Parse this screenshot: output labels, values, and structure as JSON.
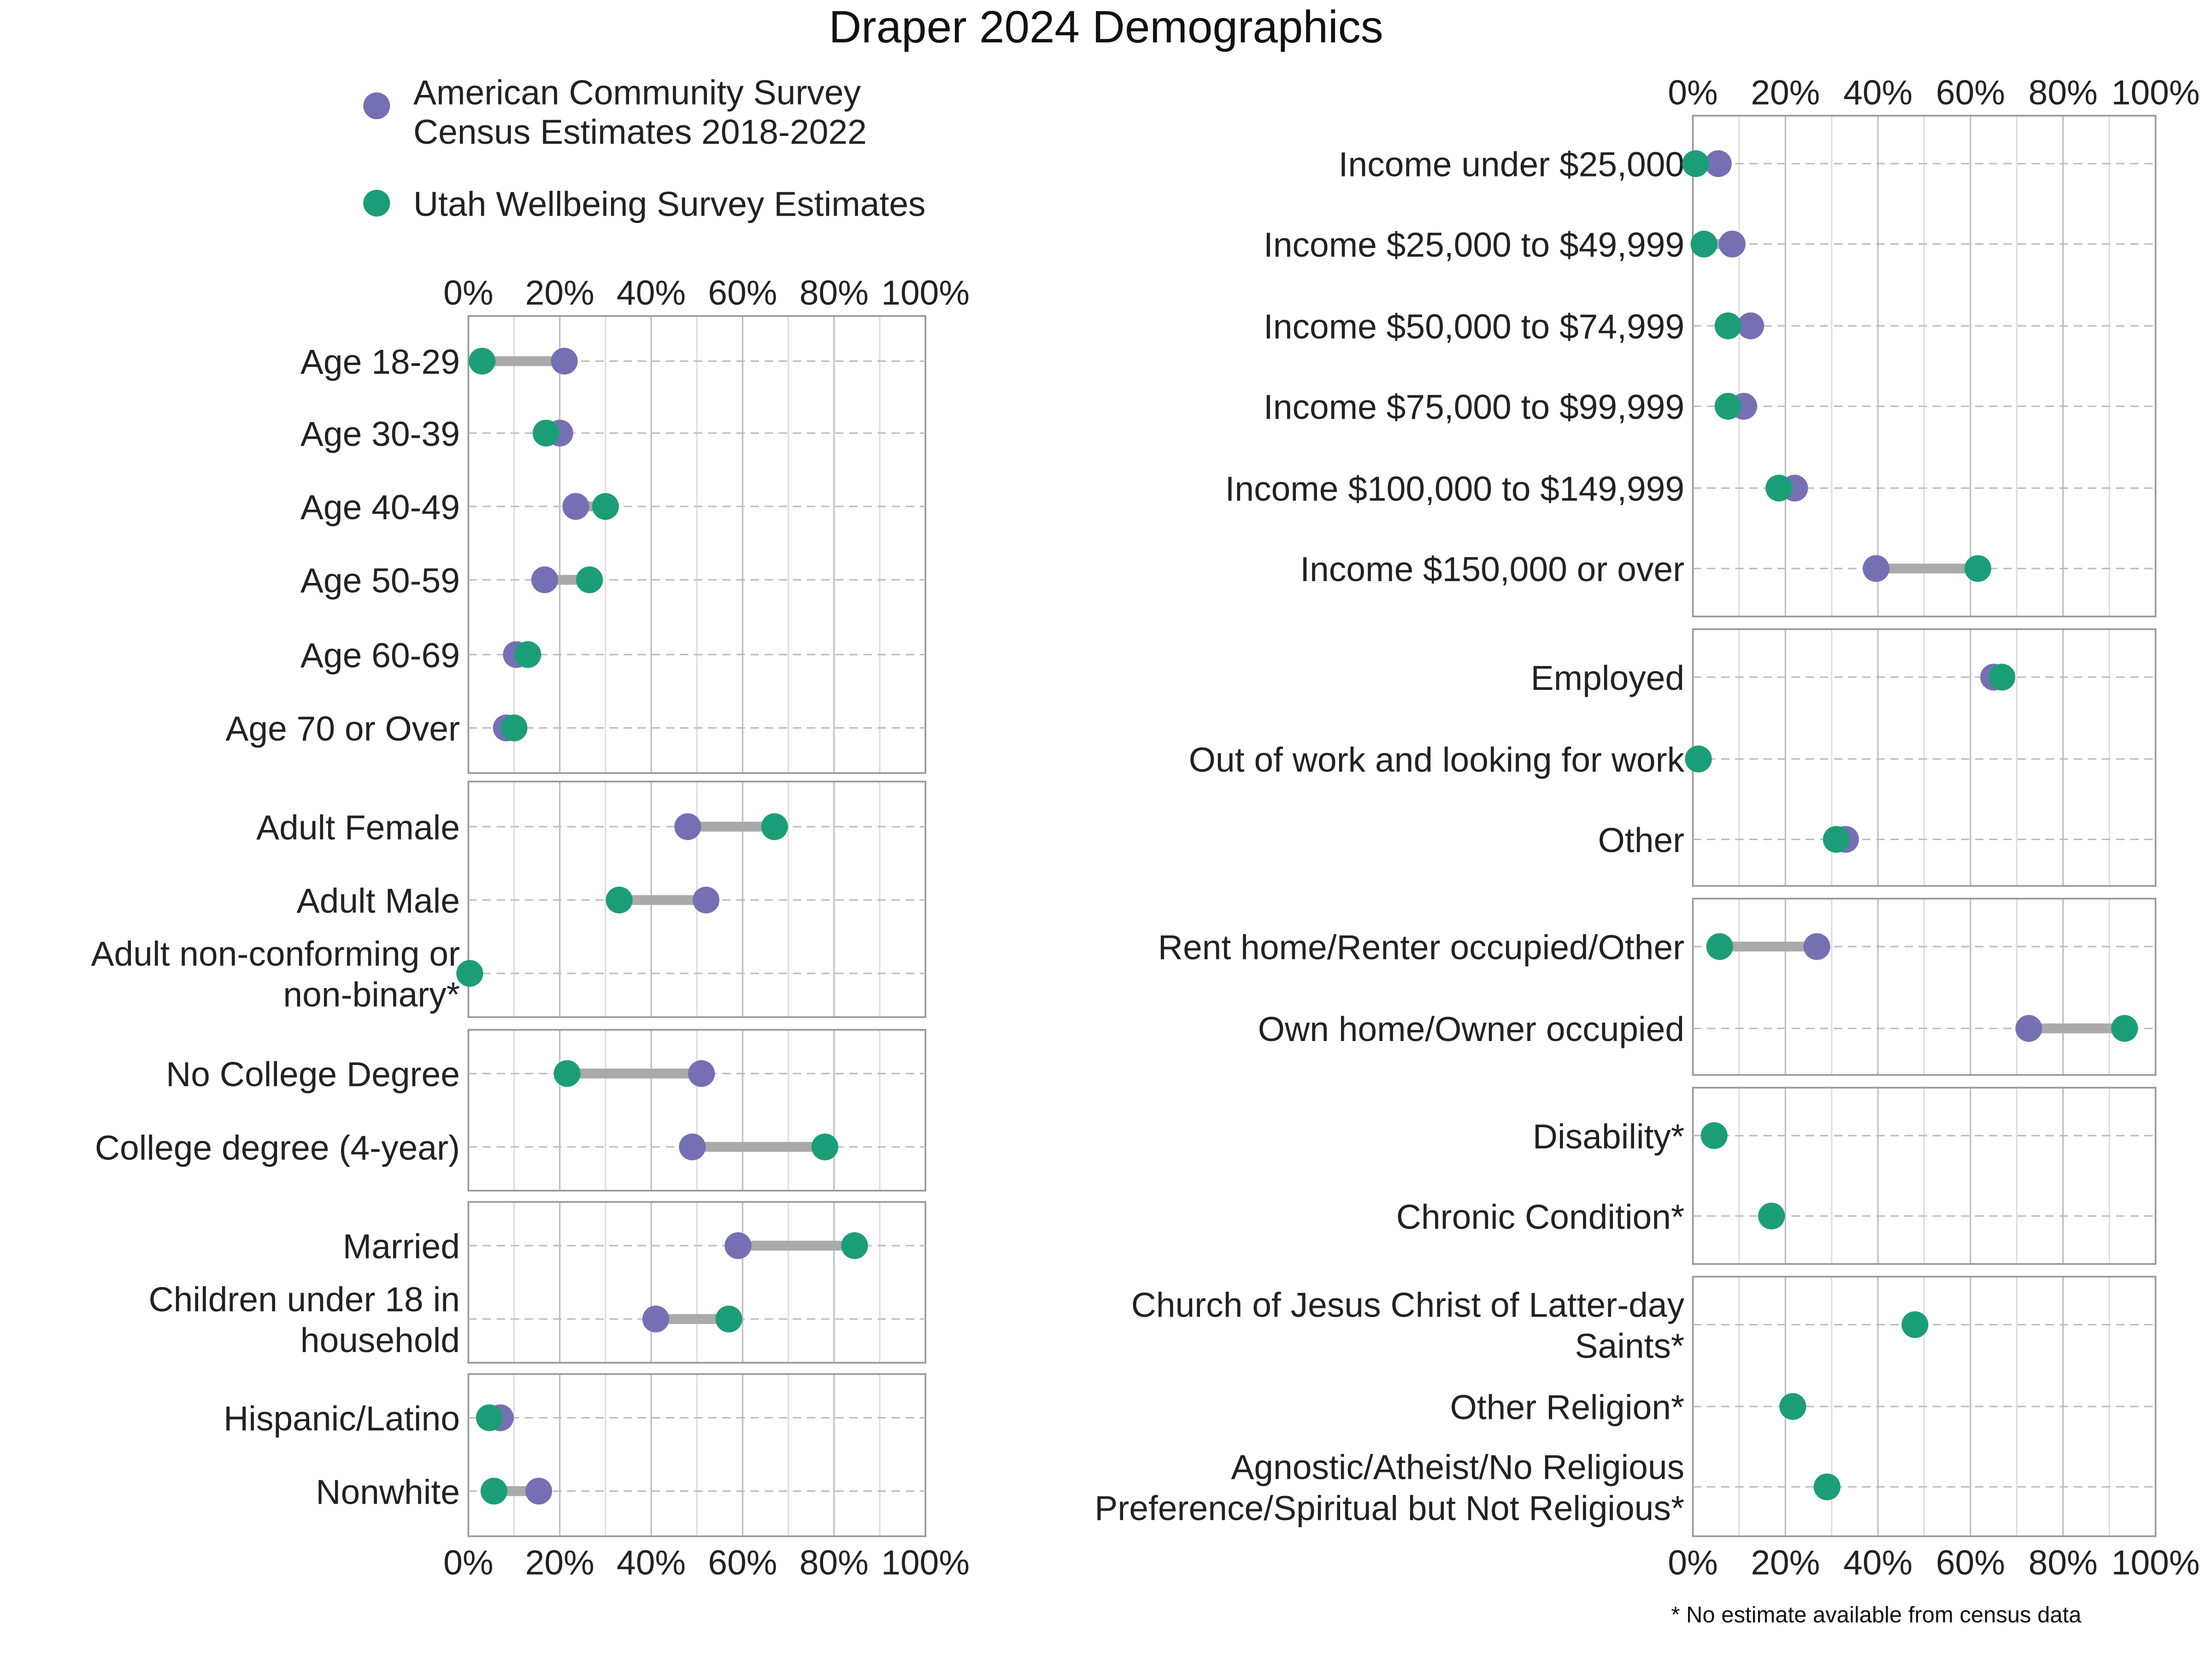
{
  "title": "Draper 2024 Demographics",
  "footnote": "* No estimate available from census data",
  "colors": {
    "acs": "#7570b3",
    "uws": "#1b9e77",
    "segment": "#aaaaaa",
    "grid": "#bbbbbb",
    "frame": "#999999"
  },
  "legend": [
    {
      "key": "acs",
      "lines": [
        "American Community Survey",
        "Census Estimates 2018-2022"
      ]
    },
    {
      "key": "uws",
      "lines": [
        "Utah Wellbeing Survey Estimates"
      ]
    }
  ],
  "chart_data": {
    "type": "dumbbell",
    "title": "Draper 2024 Demographics",
    "xlim": [
      0,
      100
    ],
    "x_ticks": [
      "0%",
      "20%",
      "40%",
      "60%",
      "80%",
      "100%"
    ],
    "series": [
      "American Community Survey Census Estimates 2018-2022",
      "Utah Wellbeing Survey Estimates"
    ],
    "panels": [
      {
        "column": "left",
        "rows": [
          {
            "label": [
              "Age 18-29"
            ],
            "acs": 21,
            "uws": 3
          },
          {
            "label": [
              "Age 30-39"
            ],
            "acs": 20,
            "uws": 17
          },
          {
            "label": [
              "Age 40-49"
            ],
            "acs": 23.5,
            "uws": 30
          },
          {
            "label": [
              "Age 50-59"
            ],
            "acs": 16.7,
            "uws": 26.5
          },
          {
            "label": [
              "Age 60-69"
            ],
            "acs": 10.5,
            "uws": 13
          },
          {
            "label": [
              "Age 70 or Over"
            ],
            "acs": 8.3,
            "uws": 10
          }
        ]
      },
      {
        "column": "left",
        "rows": [
          {
            "label": [
              "Adult Female"
            ],
            "acs": 48,
            "uws": 67
          },
          {
            "label": [
              "Adult Male"
            ],
            "acs": 52,
            "uws": 33
          },
          {
            "label": [
              "Adult non-conforming or",
              "non-binary*"
            ],
            "acs": null,
            "uws": 0.3
          }
        ]
      },
      {
        "column": "left",
        "rows": [
          {
            "label": [
              "No College Degree"
            ],
            "acs": 51,
            "uws": 21.6
          },
          {
            "label": [
              "College degree (4-year)"
            ],
            "acs": 49,
            "uws": 78
          }
        ]
      },
      {
        "column": "left",
        "rows": [
          {
            "label": [
              "Married"
            ],
            "acs": 59,
            "uws": 84.5
          },
          {
            "label": [
              "Children under 18 in",
              "household"
            ],
            "acs": 41,
            "uws": 57
          }
        ]
      },
      {
        "column": "left",
        "rows": [
          {
            "label": [
              "Hispanic/Latino"
            ],
            "acs": 7,
            "uws": 4.6
          },
          {
            "label": [
              "Nonwhite"
            ],
            "acs": 15.4,
            "uws": 5.6
          }
        ]
      },
      {
        "column": "right",
        "rows": [
          {
            "label": [
              "Income under $25,000"
            ],
            "acs": 5.5,
            "uws": 0.6
          },
          {
            "label": [
              "Income $25,000 to $49,999"
            ],
            "acs": 8.5,
            "uws": 2.4
          },
          {
            "label": [
              "Income $50,000 to $74,999"
            ],
            "acs": 12.5,
            "uws": 7.6
          },
          {
            "label": [
              "Income $75,000 to $99,999"
            ],
            "acs": 11,
            "uws": 7.6
          },
          {
            "label": [
              "Income $100,000 to $149,999"
            ],
            "acs": 22,
            "uws": 18.6
          },
          {
            "label": [
              "Income $150,000 or over"
            ],
            "acs": 39.6,
            "uws": 61.6
          }
        ]
      },
      {
        "column": "right",
        "rows": [
          {
            "label": [
              "Employed"
            ],
            "acs": 65,
            "uws": 66.8
          },
          {
            "label": [
              "Out of work and looking for work"
            ],
            "acs": 1.2,
            "uws": 1.2
          },
          {
            "label": [
              "Other"
            ],
            "acs": 33,
            "uws": 31
          }
        ]
      },
      {
        "column": "right",
        "rows": [
          {
            "label": [
              "Rent home/Renter occupied/Other"
            ],
            "acs": 26.8,
            "uws": 5.8
          },
          {
            "label": [
              "Own home/Owner occupied"
            ],
            "acs": 72.6,
            "uws": 93.3
          }
        ]
      },
      {
        "column": "right",
        "rows": [
          {
            "label": [
              "Disability*"
            ],
            "acs": null,
            "uws": 4.6
          },
          {
            "label": [
              "Chronic Condition*"
            ],
            "acs": null,
            "uws": 17
          }
        ]
      },
      {
        "column": "right",
        "rows": [
          {
            "label": [
              "Church of Jesus Christ of Latter-day",
              "Saints*"
            ],
            "acs": null,
            "uws": 48
          },
          {
            "label": [
              "Other Religion*"
            ],
            "acs": null,
            "uws": 21.6
          },
          {
            "label": [
              "Agnostic/Atheist/No Religious",
              "Preference/Spiritual but Not Religious*"
            ],
            "acs": null,
            "uws": 29
          }
        ]
      }
    ]
  }
}
